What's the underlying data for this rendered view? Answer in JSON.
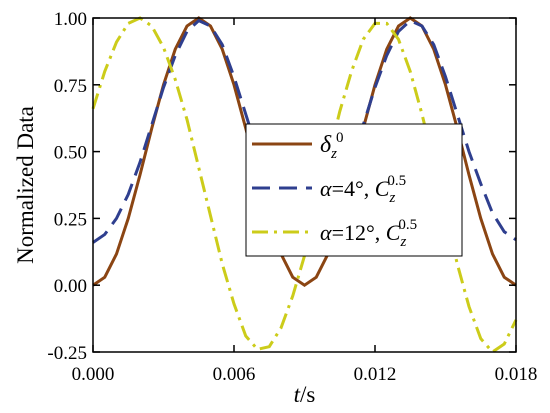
{
  "chart_data": {
    "type": "line",
    "title": "",
    "xlabel_italic": "t",
    "xlabel_unit": "/s",
    "ylabel": "Normalized  Data",
    "xlim": [
      0.0,
      0.018
    ],
    "ylim": [
      -0.25,
      1.0
    ],
    "x_ticks": [
      {
        "value": 0.0,
        "label": "0.000"
      },
      {
        "value": 0.006,
        "label": "0.006"
      },
      {
        "value": 0.012,
        "label": "0.012"
      },
      {
        "value": 0.018,
        "label": "0.018"
      }
    ],
    "y_ticks": [
      {
        "value": -0.25,
        "label": "-0.25"
      },
      {
        "value": 0.0,
        "label": "0.00"
      },
      {
        "value": 0.25,
        "label": "0.25"
      },
      {
        "value": 0.5,
        "label": "0.50"
      },
      {
        "value": 0.75,
        "label": "0.75"
      },
      {
        "value": 1.0,
        "label": "1.00"
      }
    ],
    "grid": false,
    "legend_position": "center-right",
    "series": [
      {
        "id": "delta",
        "color": "#8B4513",
        "style": "solid",
        "legend": {
          "sym": "δ",
          "sub": "z",
          "sup": "0",
          "rest": ""
        },
        "points": [
          [
            0.0,
            0.0
          ],
          [
            0.0005,
            0.03
          ],
          [
            0.001,
            0.117
          ],
          [
            0.0015,
            0.25
          ],
          [
            0.002,
            0.413
          ],
          [
            0.0025,
            0.587
          ],
          [
            0.003,
            0.75
          ],
          [
            0.0035,
            0.883
          ],
          [
            0.004,
            0.97
          ],
          [
            0.0045,
            1.0
          ],
          [
            0.005,
            0.97
          ],
          [
            0.0055,
            0.883
          ],
          [
            0.006,
            0.75
          ],
          [
            0.0065,
            0.587
          ],
          [
            0.007,
            0.413
          ],
          [
            0.0075,
            0.25
          ],
          [
            0.008,
            0.117
          ],
          [
            0.0085,
            0.03
          ],
          [
            0.009,
            0.0
          ],
          [
            0.0095,
            0.03
          ],
          [
            0.01,
            0.117
          ],
          [
            0.0105,
            0.25
          ],
          [
            0.011,
            0.413
          ],
          [
            0.0115,
            0.587
          ],
          [
            0.012,
            0.75
          ],
          [
            0.0125,
            0.883
          ],
          [
            0.013,
            0.97
          ],
          [
            0.0135,
            1.0
          ],
          [
            0.014,
            0.97
          ],
          [
            0.0145,
            0.883
          ],
          [
            0.015,
            0.75
          ],
          [
            0.0155,
            0.587
          ],
          [
            0.016,
            0.413
          ],
          [
            0.0165,
            0.25
          ],
          [
            0.017,
            0.117
          ],
          [
            0.0175,
            0.03
          ],
          [
            0.018,
            0.0
          ]
        ]
      },
      {
        "id": "alpha4",
        "color": "#2F3F8F",
        "style": "dash",
        "legend": {
          "sym": "α",
          "eq": "=4°, ",
          "c": "C",
          "sub": "z",
          "sup": "0.5"
        },
        "points": [
          [
            0.0,
            0.16
          ],
          [
            0.0005,
            0.19
          ],
          [
            0.001,
            0.25
          ],
          [
            0.0015,
            0.34
          ],
          [
            0.002,
            0.46
          ],
          [
            0.0025,
            0.6
          ],
          [
            0.003,
            0.74
          ],
          [
            0.0035,
            0.86
          ],
          [
            0.004,
            0.95
          ],
          [
            0.0045,
            0.99
          ],
          [
            0.005,
            0.97
          ],
          [
            0.0055,
            0.9
          ],
          [
            0.006,
            0.78
          ],
          [
            0.0065,
            0.64
          ],
          [
            0.007,
            0.5
          ],
          [
            0.0075,
            0.38
          ],
          [
            0.008,
            0.27
          ],
          [
            0.0085,
            0.2
          ],
          [
            0.009,
            0.16
          ],
          [
            0.0095,
            0.19
          ],
          [
            0.01,
            0.25
          ],
          [
            0.0105,
            0.34
          ],
          [
            0.011,
            0.46
          ],
          [
            0.0115,
            0.6
          ],
          [
            0.012,
            0.74
          ],
          [
            0.0125,
            0.86
          ],
          [
            0.013,
            0.95
          ],
          [
            0.0135,
            0.99
          ],
          [
            0.014,
            0.97
          ],
          [
            0.0145,
            0.9
          ],
          [
            0.015,
            0.78
          ],
          [
            0.0155,
            0.64
          ],
          [
            0.016,
            0.5
          ],
          [
            0.0165,
            0.38
          ],
          [
            0.017,
            0.27
          ],
          [
            0.0175,
            0.2
          ],
          [
            0.018,
            0.17
          ]
        ]
      },
      {
        "id": "alpha12",
        "color": "#CCCC1A",
        "style": "dashdot",
        "legend": {
          "sym": "α",
          "eq": "=12°, ",
          "c": "C",
          "sub": "z",
          "sup": "0.5"
        },
        "points": [
          [
            0.0,
            0.66
          ],
          [
            0.0005,
            0.8
          ],
          [
            0.001,
            0.91
          ],
          [
            0.0015,
            0.98
          ],
          [
            0.002,
            1.0
          ],
          [
            0.0025,
            0.97
          ],
          [
            0.003,
            0.89
          ],
          [
            0.0035,
            0.77
          ],
          [
            0.004,
            0.62
          ],
          [
            0.0045,
            0.44
          ],
          [
            0.005,
            0.26
          ],
          [
            0.0055,
            0.08
          ],
          [
            0.006,
            -0.07
          ],
          [
            0.0065,
            -0.19
          ],
          [
            0.007,
            -0.24
          ],
          [
            0.0075,
            -0.23
          ],
          [
            0.008,
            -0.16
          ],
          [
            0.0085,
            -0.04
          ],
          [
            0.009,
            0.11
          ],
          [
            0.0095,
            0.29
          ],
          [
            0.01,
            0.47
          ],
          [
            0.0105,
            0.65
          ],
          [
            0.011,
            0.8
          ],
          [
            0.0115,
            0.92
          ],
          [
            0.012,
            0.98
          ],
          [
            0.0125,
            0.98
          ],
          [
            0.013,
            0.92
          ],
          [
            0.0135,
            0.8
          ],
          [
            0.014,
            0.64
          ],
          [
            0.0145,
            0.46
          ],
          [
            0.015,
            0.27
          ],
          [
            0.0155,
            0.08
          ],
          [
            0.016,
            -0.08
          ],
          [
            0.0165,
            -0.2
          ],
          [
            0.017,
            -0.25
          ],
          [
            0.0175,
            -0.22
          ],
          [
            0.018,
            -0.13
          ]
        ]
      }
    ]
  }
}
